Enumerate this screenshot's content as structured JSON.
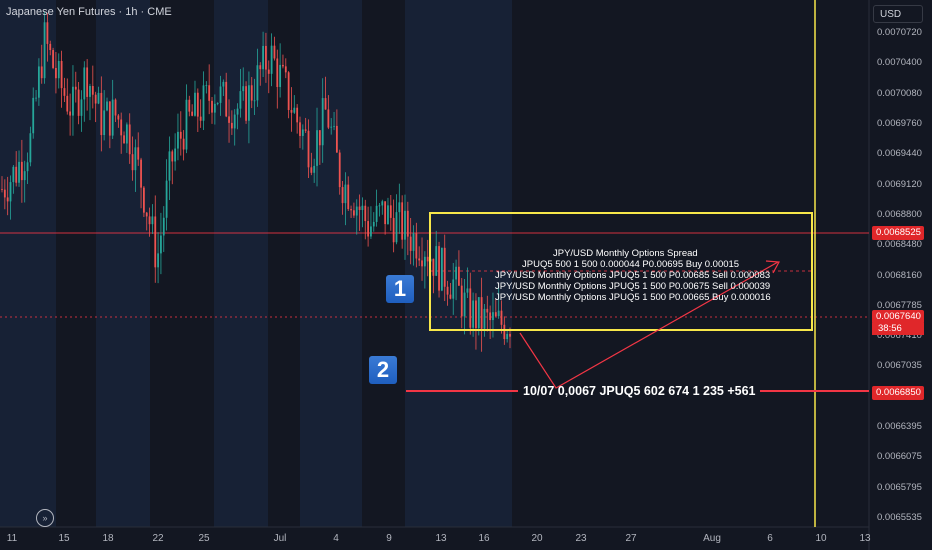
{
  "header": {
    "title": "Japanese Yen Futures · 1h · CME",
    "currency_button": "USD"
  },
  "price_tags": {
    "level_red": "0.0068525",
    "last_price": "0.0067640",
    "countdown": "38:56",
    "target_level": "0.0066850"
  },
  "annotations": {
    "badge_1": "1",
    "badge_2": "2",
    "spread_title": "JPY/USD Monthly Options Spread",
    "spread_lines": [
      "JPUQ5 500 1 500 0.000044 P0.00695 Buy 0.00015",
      "JPY/USD Monthly Options JPUQ5 1 500 P0.00685 Sell 0.000083",
      "JPY/USD Monthly Options JPUQ5 1 500 P0.00675 Sell 0.000039",
      "JPY/USD Monthly Options JPUQ5 1 500 P0.00665 Buy 0.000016"
    ],
    "block_trade": "10/07 0,0067 JPUQ5 602 674 1 235 +561"
  },
  "colors": {
    "background": "#131722",
    "up": "#26a69a",
    "down": "#ef5350",
    "level_line": "#f23645",
    "highlight_box": "#f7e74a",
    "arrow": "#f23645",
    "session_shade": "#1c2946"
  },
  "chart_data": {
    "type": "line",
    "title": "Japanese Yen Futures · 1h · CME",
    "xlabel": "",
    "ylabel": "",
    "y_ticks": [
      "0.0070720",
      "0.0070400",
      "0.0070080",
      "0.0069760",
      "0.0069440",
      "0.0069120",
      "0.0068800",
      "0.0068480",
      "0.0068160",
      "0.0067785",
      "0.0067410",
      "0.0067035",
      "0.0066715",
      "0.0066395",
      "0.0066075",
      "0.0065795",
      "0.0065535"
    ],
    "x_ticks": [
      "11",
      "15",
      "18",
      "22",
      "25",
      "Jul",
      "4",
      "9",
      "13",
      "16",
      "20",
      "23",
      "27",
      "Aug",
      "6",
      "10",
      "13"
    ],
    "ylim": [
      0.00655,
      0.00709
    ],
    "series": [
      {
        "x": [
          "Jun 11",
          "Jun 12",
          "Jun 13",
          "Jun 14",
          "Jun 15",
          "Jun 16",
          "Jun 17",
          "Jun 18",
          "Jun 19",
          "Jun 20",
          "Jun 21",
          "Jun 22",
          "Jun 23",
          "Jun 24",
          "Jun 25",
          "Jun 26",
          "Jun 27",
          "Jun 28",
          "Jun 29",
          "Jun 30",
          "Jul 1",
          "Jul 2",
          "Jul 3",
          "Jul 4",
          "Jul 5",
          "Jul 6",
          "Jul 7",
          "Jul 8",
          "Jul 9",
          "Jul 10",
          "Jul 11",
          "Jul 12",
          "Jul 13",
          "Jul 14",
          "Jul 15",
          "Jul 16",
          "Jul 17"
        ],
        "values": [
          0.006905,
          0.006925,
          0.006955,
          0.007065,
          0.00702,
          0.00699,
          0.00703,
          0.00698,
          0.006985,
          0.006965,
          0.006905,
          0.00683,
          0.006935,
          0.006975,
          0.00699,
          0.00701,
          0.006995,
          0.00699,
          0.00702,
          0.00705,
          0.007015,
          0.006975,
          0.006945,
          0.00699,
          0.006915,
          0.006895,
          0.006865,
          0.00688,
          0.00687,
          0.006855,
          0.006845,
          0.00682,
          0.006805,
          0.006775,
          0.006765,
          0.00676,
          0.006764
        ]
      }
    ],
    "horizontal_levels": [
      0.0068525,
      0.006685
    ],
    "last_price": 0.006764,
    "vertical_marker": "Aug 10",
    "grid": false
  }
}
